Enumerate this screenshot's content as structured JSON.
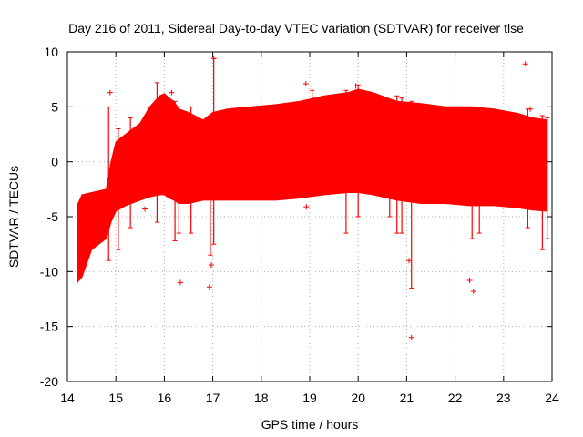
{
  "chart_data": {
    "type": "scatter",
    "title": "Day 216 of 2011, Sidereal Day-to-day VTEC variation (SDTVAR) for receiver tlse",
    "xlabel": "GPS time / hours",
    "ylabel": "SDTVAR / TECUs",
    "xlim": [
      14,
      24
    ],
    "ylim": [
      -20,
      10
    ],
    "xticks": [
      "14",
      "15",
      "16",
      "17",
      "18",
      "19",
      "20",
      "21",
      "22",
      "23",
      "24"
    ],
    "yticks": [
      "10",
      "5",
      "0",
      "-5",
      "-10",
      "-15",
      "-20"
    ],
    "grid": true,
    "color": "#ff0000",
    "envelope": {
      "x": [
        14.2,
        14.3,
        14.5,
        14.8,
        14.9,
        15.0,
        15.2,
        15.5,
        15.7,
        15.9,
        16.0,
        16.1,
        16.2,
        16.3,
        16.5,
        16.8,
        17.0,
        17.3,
        17.8,
        18.3,
        18.8,
        19.3,
        19.8,
        20.0,
        20.3,
        20.8,
        21.3,
        21.8,
        22.3,
        22.8,
        23.3,
        23.6,
        23.9
      ],
      "upper": [
        -4.0,
        -3.0,
        -2.8,
        -2.5,
        0.0,
        1.8,
        2.5,
        3.5,
        5.0,
        6.0,
        6.2,
        5.8,
        5.5,
        4.8,
        4.5,
        3.8,
        4.5,
        4.8,
        5.0,
        5.2,
        5.5,
        6.0,
        6.3,
        6.6,
        6.3,
        5.5,
        5.3,
        5.0,
        5.0,
        4.8,
        4.4,
        4.0,
        3.8
      ],
      "lower": [
        -11.0,
        -10.5,
        -8.0,
        -7.0,
        -5.5,
        -4.5,
        -4.0,
        -3.5,
        -3.2,
        -3.0,
        -3.0,
        -3.3,
        -3.5,
        -3.8,
        -3.8,
        -3.5,
        -3.5,
        -3.5,
        -3.5,
        -3.5,
        -3.3,
        -3.0,
        -2.8,
        -2.8,
        -3.0,
        -3.5,
        -3.8,
        -3.8,
        -4.0,
        -4.0,
        -4.2,
        -4.4,
        -4.5
      ]
    },
    "spikes": [
      {
        "x": 14.85,
        "low": -9.0,
        "high": 5.0
      },
      {
        "x": 15.05,
        "low": -8.0,
        "high": 3.0
      },
      {
        "x": 15.3,
        "low": -6.0,
        "high": 4.0
      },
      {
        "x": 15.85,
        "low": -5.5,
        "high": 7.2
      },
      {
        "x": 16.22,
        "low": -7.2,
        "high": 5.5
      },
      {
        "x": 16.3,
        "low": -6.5,
        "high": 5.0
      },
      {
        "x": 16.55,
        "low": -6.5,
        "high": 5.0
      },
      {
        "x": 16.95,
        "low": -8.5,
        "high": 4.0
      },
      {
        "x": 17.02,
        "low": -7.5,
        "high": 9.4
      },
      {
        "x": 19.05,
        "low": -2.5,
        "high": 6.5
      },
      {
        "x": 19.75,
        "low": -6.5,
        "high": 6.5
      },
      {
        "x": 20.0,
        "low": -5.0,
        "high": 7.0
      },
      {
        "x": 20.65,
        "low": -5.0,
        "high": 5.5
      },
      {
        "x": 20.8,
        "low": -6.5,
        "high": 6.0
      },
      {
        "x": 20.9,
        "low": -6.5,
        "high": 5.8
      },
      {
        "x": 21.1,
        "low": -11.5,
        "high": 5.5
      },
      {
        "x": 22.35,
        "low": -7.0,
        "high": 5.0
      },
      {
        "x": 22.5,
        "low": -6.5,
        "high": 4.8
      },
      {
        "x": 23.5,
        "low": -6.0,
        "high": 4.8
      },
      {
        "x": 23.8,
        "low": -8.0,
        "high": 4.2
      },
      {
        "x": 23.9,
        "low": -7.0,
        "high": 4.0
      }
    ],
    "outliers": [
      {
        "x": 14.88,
        "y": 6.3
      },
      {
        "x": 15.6,
        "y": -4.3
      },
      {
        "x": 16.15,
        "y": 6.3
      },
      {
        "x": 16.33,
        "y": -11.0
      },
      {
        "x": 16.93,
        "y": -11.4
      },
      {
        "x": 16.97,
        "y": -9.4
      },
      {
        "x": 17.02,
        "y": 9.4
      },
      {
        "x": 18.92,
        "y": 7.1
      },
      {
        "x": 18.93,
        "y": -4.1
      },
      {
        "x": 19.55,
        "y": -2.5
      },
      {
        "x": 19.95,
        "y": 6.9
      },
      {
        "x": 21.05,
        "y": -9.0
      },
      {
        "x": 21.1,
        "y": -16.0
      },
      {
        "x": 22.3,
        "y": -10.8
      },
      {
        "x": 22.38,
        "y": -11.8
      },
      {
        "x": 23.45,
        "y": 8.9
      },
      {
        "x": 23.55,
        "y": 4.8
      }
    ]
  }
}
